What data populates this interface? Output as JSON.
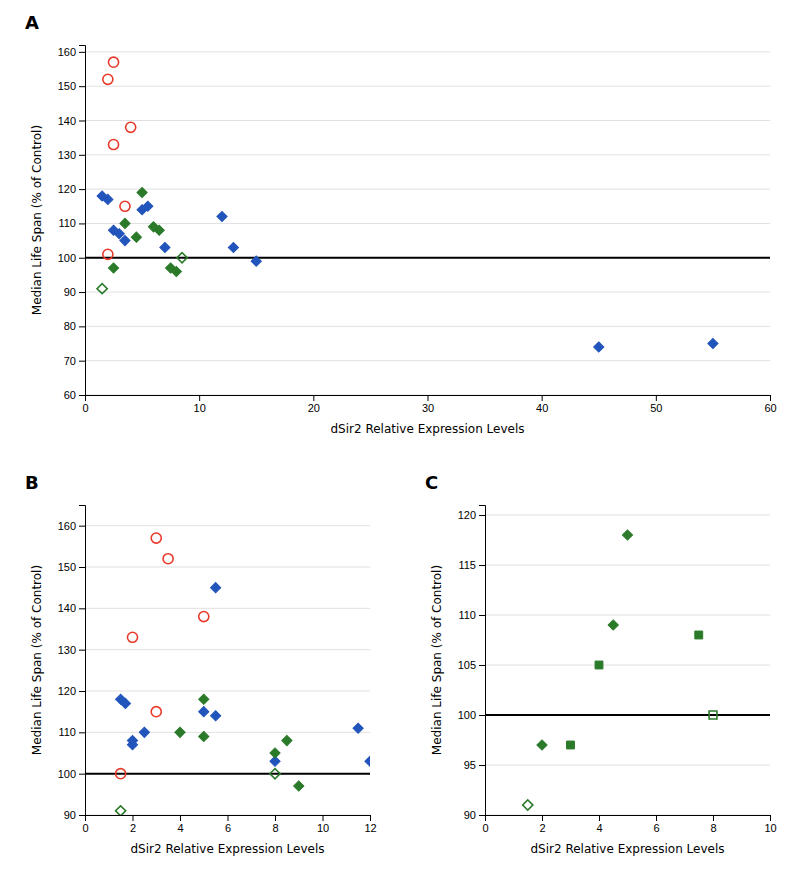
{
  "chart_data": [
    {
      "type": "scatter",
      "title": "A",
      "xlabel": "dSir2 Relative Expression Levels",
      "ylabel": "Median Life Span (% of Control)",
      "xlim": [
        0,
        60
      ],
      "ylim": [
        60,
        162
      ],
      "xticks": [
        0,
        10,
        20,
        30,
        40,
        50,
        60
      ],
      "yticks": [
        60,
        70,
        80,
        90,
        100,
        110,
        120,
        130,
        140,
        150,
        160
      ],
      "grid": true,
      "hline_y": 100,
      "series": [
        {
          "color": "#e8392a",
          "marker": "circle-open",
          "x": [
            2.5,
            2.0,
            4.0,
            2.5,
            3.5,
            2.0
          ],
          "values": [
            157,
            152,
            138,
            133,
            115,
            101
          ]
        },
        {
          "color": "#2255bb",
          "marker": "diamond",
          "x": [
            1.5,
            2.0,
            2.5,
            3.0,
            3.5,
            5.0,
            5.5,
            7.0,
            12.0,
            13.0,
            15.0,
            45.0,
            55.0
          ],
          "values": [
            118,
            117,
            108,
            107,
            105,
            114,
            115,
            103,
            112,
            103,
            99,
            74,
            75
          ]
        },
        {
          "color": "#2a7a2a",
          "marker": "diamond",
          "x": [
            2.5,
            3.5,
            4.5,
            5.0,
            6.0,
            6.5,
            7.5,
            8.0
          ],
          "values": [
            97,
            110,
            106,
            119,
            109,
            108,
            97,
            96
          ]
        },
        {
          "color": "#2a7a2a",
          "marker": "diamond-open",
          "x": [
            1.5,
            8.5
          ],
          "values": [
            91,
            100
          ]
        }
      ]
    },
    {
      "type": "scatter",
      "title": "B",
      "xlabel": "dSir2 Relative Expression Levels",
      "ylabel": "Median Life Span (% of Control)",
      "xlim": [
        0,
        12
      ],
      "ylim": [
        90,
        165
      ],
      "xticks": [
        0,
        2,
        4,
        6,
        8,
        10,
        12
      ],
      "yticks": [
        90,
        100,
        110,
        120,
        130,
        140,
        150,
        160
      ],
      "grid": true,
      "hline_y": 100,
      "series": [
        {
          "color": "#e8392a",
          "marker": "circle-open",
          "x": [
            3.0,
            3.5,
            5.0,
            2.0,
            3.0,
            1.5
          ],
          "values": [
            157,
            152,
            138,
            133,
            115,
            100
          ]
        },
        {
          "color": "#2255bb",
          "marker": "diamond",
          "x": [
            1.5,
            1.7,
            2.0,
            2.0,
            2.5,
            5.0,
            5.5,
            5.5,
            8.0,
            11.5,
            12.0
          ],
          "values": [
            118,
            117,
            108,
            107,
            110,
            115,
            114,
            145,
            103,
            111,
            103
          ]
        },
        {
          "color": "#2a7a2a",
          "marker": "diamond",
          "x": [
            4.0,
            5.0,
            5.0,
            8.0,
            8.5,
            9.0
          ],
          "values": [
            110,
            109,
            118,
            105,
            108,
            97
          ]
        },
        {
          "color": "#2a7a2a",
          "marker": "diamond-open",
          "x": [
            1.5,
            8.0
          ],
          "values": [
            91,
            100
          ]
        }
      ]
    },
    {
      "type": "scatter",
      "title": "C",
      "xlabel": "dSir2 Relative Expression Levels",
      "ylabel": "Median Life Span (% of Control)",
      "xlim": [
        0,
        10
      ],
      "ylim": [
        90,
        121
      ],
      "xticks": [
        0,
        2,
        4,
        6,
        8,
        10
      ],
      "yticks": [
        90,
        95,
        100,
        105,
        110,
        115,
        120
      ],
      "grid": true,
      "hline_y": 100,
      "series": [
        {
          "color": "#2a7a2a",
          "marker": "diamond",
          "x": [
            2.0,
            4.5,
            5.0
          ],
          "values": [
            97,
            109,
            118
          ]
        },
        {
          "color": "#2a7a2a",
          "marker": "square",
          "x": [
            3.0,
            4.0,
            7.5
          ],
          "values": [
            97,
            105,
            108
          ]
        },
        {
          "color": "#2a7a2a",
          "marker": "diamond-open",
          "x": [
            1.5
          ],
          "values": [
            91
          ]
        },
        {
          "color": "#2a7a2a",
          "marker": "square-open",
          "x": [
            8.0
          ],
          "values": [
            100
          ]
        }
      ]
    }
  ]
}
